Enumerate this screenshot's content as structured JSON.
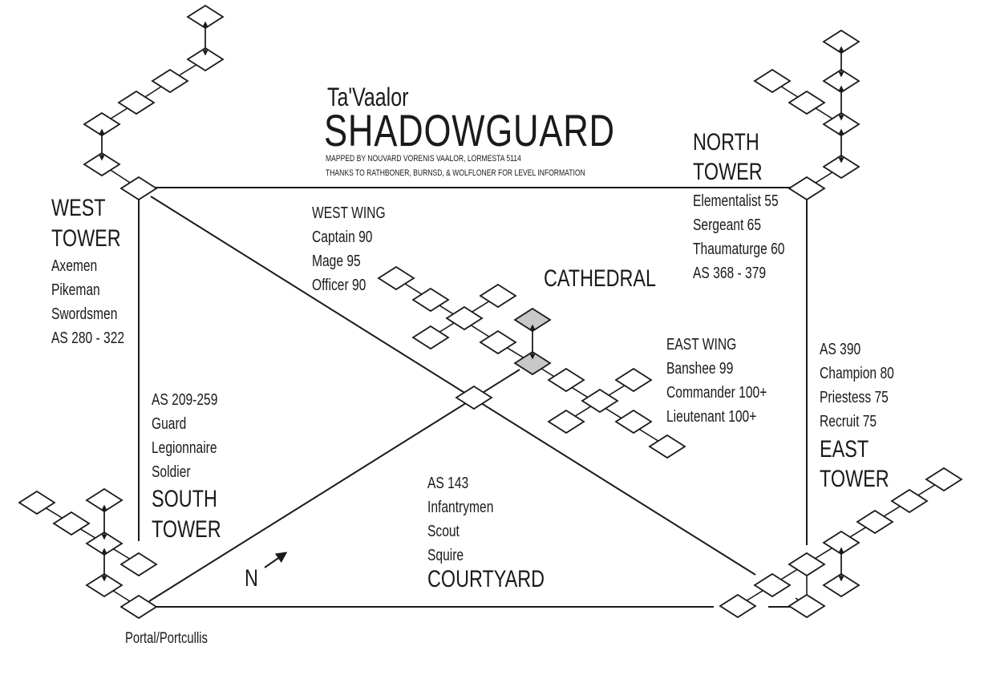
{
  "title": {
    "subtitle": "Ta'Vaalor",
    "name": "SHADOWGUARD",
    "credit_1": "MAPPED BY NOUVARD VORENIS VAALOR, LORMESTA 5114",
    "credit_2": "THANKS TO RATHBONER, BURNSD, & WOLFLONER FOR LEVEL INFORMATION"
  },
  "areas": {
    "west_tower": {
      "name_1": "WEST",
      "name_2": "TOWER",
      "lines": [
        "Axemen",
        "Pikeman",
        "Swordsmen",
        "AS 280 - 322"
      ]
    },
    "north_tower": {
      "name_1": "NORTH",
      "name_2": "TOWER",
      "lines": [
        "Elementalist 55",
        "Sergeant 65",
        "Thaumaturge 60",
        "AS 368 - 379"
      ]
    },
    "west_wing": {
      "name": "WEST WING",
      "lines": [
        "Captain 90",
        "Mage 95",
        "Officer 90"
      ]
    },
    "cathedral": {
      "name": "CATHEDRAL"
    },
    "east_wing": {
      "name": "EAST WING",
      "lines": [
        "Banshee 99",
        "Commander 100+",
        "Lieutenant 100+"
      ]
    },
    "east_tower": {
      "name_1": "EAST",
      "name_2": "TOWER",
      "lines": [
        "AS 390",
        "Champion 80",
        "Priestess 75",
        "Recruit 75"
      ]
    },
    "south_tower": {
      "name_1": "SOUTH",
      "name_2": "TOWER",
      "lines": [
        "AS 209-259",
        "Guard",
        "Legionnaire",
        "Soldier"
      ]
    },
    "courtyard": {
      "name": "COURTYARD",
      "lines": [
        "AS 143",
        "Infantrymen",
        "Scout",
        "Squire"
      ]
    },
    "portal": {
      "name": "Portal/Portcullis"
    }
  },
  "compass": {
    "label": "N"
  },
  "colors": {
    "ink": "#1a1a1a",
    "highlight": "#c8c8c8",
    "paper": "#ffffff"
  }
}
